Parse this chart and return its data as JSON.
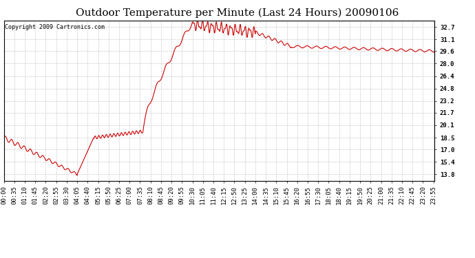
{
  "title": "Outdoor Temperature per Minute (Last 24 Hours) 20090106",
  "copyright_text": "Copyright 2009 Cartronics.com",
  "line_color": "#cc0000",
  "background_color": "#ffffff",
  "plot_background_color": "#ffffff",
  "grid_color": "#bbbbbb",
  "title_fontsize": 11,
  "tick_fontsize": 6.5,
  "yticks": [
    13.8,
    15.4,
    17.0,
    18.5,
    20.1,
    21.7,
    23.2,
    24.8,
    26.4,
    28.0,
    29.6,
    31.1,
    32.7
  ],
  "ylim": [
    13.0,
    33.5
  ],
  "x_label_interval": 35,
  "total_minutes": 1440
}
